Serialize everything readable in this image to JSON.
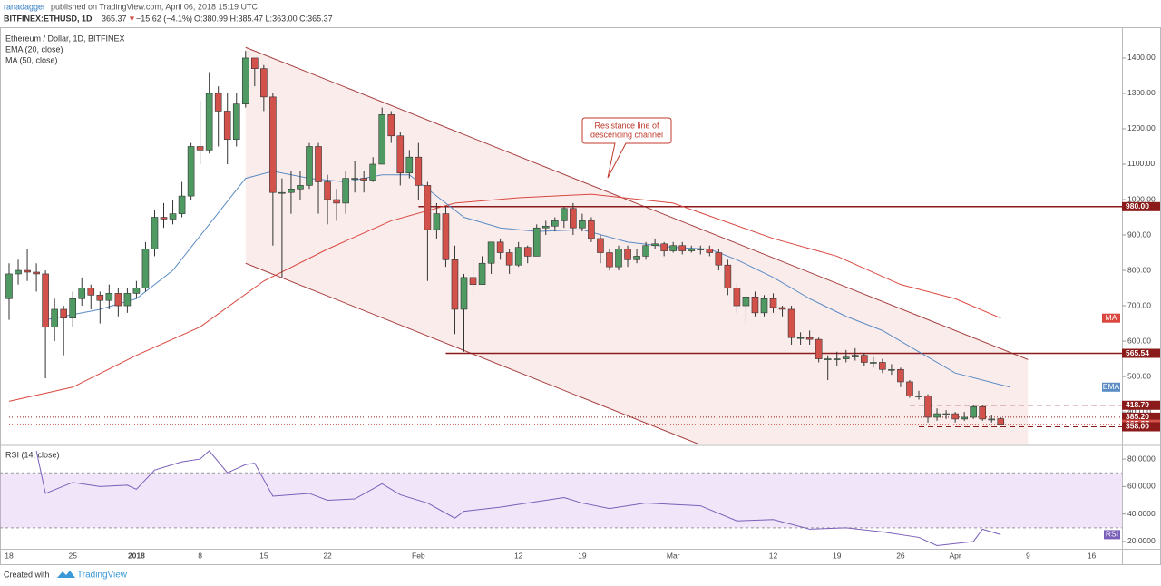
{
  "header": {
    "author": "ranadagger",
    "published": "published on TradingView.com, April 06, 2018 15:19 UTC",
    "symbol": "BITFINEX:ETHUSD, 1D",
    "last": "365.37",
    "arrow": "▼",
    "change": "−15.62 (−4.1%)",
    "ohlc": "O:380.99 H:385.47 L:363.00 C:365.37"
  },
  "chart_data": {
    "type": "candlestick",
    "title": "Ethereum / Dollar, 1D, BITFINEX",
    "categories": [
      "18",
      null,
      null,
      null,
      null,
      null,
      null,
      "25",
      null,
      null,
      null,
      null,
      null,
      null,
      "2018",
      null,
      null,
      null,
      null,
      null,
      null,
      "8",
      null,
      null,
      null,
      null,
      null,
      null,
      "15",
      null,
      null,
      null,
      null,
      null,
      null,
      "22",
      null,
      null,
      null,
      null,
      null,
      null,
      null,
      null,
      null,
      "Feb",
      null,
      null,
      null,
      null,
      null,
      null,
      null,
      null,
      null,
      null,
      "12",
      null,
      null,
      null,
      null,
      null,
      null,
      "19",
      null,
      null,
      null,
      null,
      null,
      null,
      null,
      null,
      null,
      "Mar",
      null,
      null,
      null,
      null,
      null,
      null,
      null,
      null,
      null,
      null,
      "12",
      null,
      null,
      null,
      null,
      null,
      null,
      "19",
      null,
      null,
      null,
      null,
      null,
      null,
      "26",
      null,
      null,
      null,
      null,
      null,
      "Apr",
      null,
      null,
      null,
      null,
      null,
      null,
      null,
      "9",
      null,
      null,
      null,
      null,
      null,
      null,
      "16"
    ],
    "open": [
      720,
      790,
      800,
      795,
      790,
      640,
      690,
      665,
      720,
      750,
      730,
      715,
      735,
      700,
      735,
      750,
      860,
      950,
      945,
      960,
      1010,
      1150,
      1140,
      1300,
      1250,
      1170,
      1270,
      1400,
      1370,
      1290,
      1020,
      1020,
      1030,
      1040,
      1150,
      1050,
      1000,
      990,
      1060,
      1060,
      1055,
      1100,
      1240,
      1180,
      1075,
      1120,
      1040,
      915,
      960,
      830,
      690,
      780,
      760,
      820,
      880,
      850,
      815,
      865,
      840,
      920,
      925,
      940,
      975,
      920,
      940,
      890,
      850,
      810,
      860,
      830,
      840,
      870,
      875,
      855,
      870,
      855,
      860,
      860,
      850,
      815,
      750,
      700,
      725,
      680,
      720,
      695,
      690,
      610,
      610,
      605,
      550,
      550,
      550,
      555,
      560,
      540,
      540,
      520,
      520,
      485,
      445,
      445,
      385,
      395,
      395,
      380,
      385,
      415,
      380,
      380.99,
      null,
      null,
      null,
      null,
      null,
      null,
      null,
      null,
      null,
      null
    ],
    "high": [
      820,
      830,
      860,
      820,
      800,
      720,
      700,
      740,
      780,
      760,
      740,
      760,
      750,
      750,
      770,
      880,
      970,
      990,
      1000,
      1050,
      1160,
      1280,
      1360,
      1320,
      1300,
      1300,
      1420,
      1400,
      1380,
      1300,
      1060,
      1080,
      1080,
      1160,
      1160,
      1070,
      1030,
      1080,
      1110,
      1080,
      1120,
      1260,
      1250,
      1190,
      1140,
      1160,
      1050,
      990,
      980,
      870,
      790,
      830,
      840,
      880,
      890,
      860,
      880,
      870,
      930,
      940,
      950,
      980,
      990,
      960,
      950,
      900,
      860,
      870,
      870,
      860,
      880,
      890,
      880,
      880,
      880,
      870,
      870,
      870,
      860,
      830,
      760,
      730,
      740,
      730,
      735,
      700,
      700,
      625,
      630,
      610,
      560,
      570,
      575,
      580,
      565,
      555,
      550,
      535,
      525,
      490,
      460,
      450,
      410,
      405,
      400,
      400,
      420,
      420,
      390,
      385.47,
      null,
      null,
      null,
      null,
      null,
      null,
      null,
      null,
      null,
      null
    ],
    "low": [
      660,
      760,
      770,
      740,
      495,
      600,
      560,
      640,
      700,
      690,
      650,
      690,
      670,
      680,
      720,
      740,
      840,
      920,
      930,
      950,
      1000,
      1100,
      1130,
      1150,
      1100,
      1150,
      1260,
      1320,
      1250,
      870,
      780,
      960,
      1000,
      1030,
      960,
      930,
      940,
      960,
      1020,
      1020,
      1050,
      1100,
      1160,
      1040,
      1060,
      1000,
      770,
      890,
      810,
      620,
      570,
      730,
      760,
      790,
      830,
      790,
      810,
      820,
      840,
      900,
      910,
      920,
      900,
      910,
      880,
      820,
      800,
      800,
      810,
      820,
      830,
      860,
      840,
      850,
      845,
      850,
      845,
      840,
      800,
      730,
      680,
      650,
      670,
      670,
      680,
      670,
      590,
      590,
      590,
      540,
      490,
      530,
      540,
      545,
      530,
      525,
      510,
      505,
      470,
      440,
      435,
      370,
      375,
      380,
      370,
      375,
      380,
      375,
      370,
      363,
      null,
      null,
      null,
      null,
      null,
      null,
      null,
      null,
      null,
      null
    ],
    "close": [
      790,
      800,
      795,
      790,
      640,
      690,
      665,
      720,
      750,
      730,
      715,
      735,
      700,
      735,
      750,
      860,
      950,
      945,
      960,
      1010,
      1150,
      1140,
      1300,
      1250,
      1170,
      1270,
      1400,
      1370,
      1290,
      1020,
      1020,
      1030,
      1040,
      1150,
      1050,
      1000,
      990,
      1060,
      1060,
      1055,
      1100,
      1240,
      1180,
      1075,
      1120,
      1040,
      915,
      960,
      830,
      690,
      780,
      760,
      820,
      880,
      850,
      815,
      865,
      840,
      920,
      925,
      940,
      975,
      920,
      940,
      890,
      850,
      810,
      860,
      830,
      840,
      870,
      875,
      855,
      870,
      855,
      860,
      860,
      850,
      815,
      750,
      700,
      725,
      680,
      720,
      695,
      690,
      610,
      610,
      605,
      550,
      550,
      550,
      555,
      560,
      540,
      540,
      520,
      520,
      485,
      445,
      445,
      385,
      395,
      395,
      380,
      385,
      415,
      380,
      380,
      365.37,
      null,
      null,
      null,
      null,
      null,
      null,
      null,
      null,
      null,
      null
    ],
    "up_color": "#4f9a62",
    "down_color": "#d2524b",
    "ylim": [
      308,
      1487
    ],
    "yticks": [
      {
        "value": 400,
        "label": "400.00"
      },
      {
        "value": 500,
        "label": "500.00"
      },
      {
        "value": 600,
        "label": "600.00"
      },
      {
        "value": 700,
        "label": "700.00"
      },
      {
        "value": 800,
        "label": "800.00"
      },
      {
        "value": 900,
        "label": "900.00"
      },
      {
        "value": 1000,
        "label": "1000.00"
      },
      {
        "value": 1100,
        "label": "1100.00"
      },
      {
        "value": 1200,
        "label": "1200.00"
      },
      {
        "value": 1300,
        "label": "1300.00"
      },
      {
        "value": 1400,
        "label": "1400.00"
      }
    ],
    "ema": {
      "name": "EMA",
      "legend": "EMA (20, close)",
      "color": "#5b8cc4",
      "x": [
        4,
        10,
        14,
        18,
        22,
        26,
        29,
        33,
        37,
        41,
        44,
        47,
        50,
        54,
        58,
        63,
        68,
        73,
        77,
        80,
        84,
        88,
        92,
        96,
        100,
        104,
        110
      ],
      "values": [
        660,
        690,
        720,
        800,
        930,
        1060,
        1080,
        1060,
        1050,
        1070,
        1070,
        1010,
        950,
        920,
        910,
        915,
        880,
        865,
        860,
        830,
        780,
        720,
        670,
        630,
        570,
        510,
        470
      ]
    },
    "ma": {
      "name": "MA",
      "legend": "MA (50, close)",
      "color": "#d9473f",
      "x": [
        0,
        7,
        14,
        21,
        28,
        35,
        42,
        49,
        56,
        64,
        73,
        84,
        91,
        98,
        104,
        109
      ],
      "values": [
        430,
        470,
        560,
        640,
        770,
        860,
        940,
        990,
        1005,
        1015,
        990,
        890,
        840,
        760,
        720,
        665
      ]
    },
    "levels": [
      {
        "value": 980,
        "label": "980.00",
        "from": 45,
        "style": "solid",
        "color": "#8b1a1a"
      },
      {
        "value": 565.54,
        "label": "565.54",
        "from": 48,
        "style": "solid",
        "color": "#8b1a1a"
      },
      {
        "value": 418.79,
        "label": "418.79",
        "from": 99,
        "style": "dashed",
        "color": "#8b1a1a"
      },
      {
        "value": 385.2,
        "label": "385.20",
        "from": 0,
        "style": "dotted",
        "color": "#8b1a1a"
      },
      {
        "value": 365.37,
        "label": "365.37",
        "from": 0,
        "style": "dotted",
        "color": "#d2524b"
      },
      {
        "value": 358,
        "label": "358.00",
        "from": 100,
        "style": "dashed",
        "color": "#8b1a1a"
      }
    ],
    "channel": {
      "color": "#a84040",
      "upper": {
        "x": [
          26,
          112
        ],
        "y": [
          1430,
          548
        ]
      },
      "lower": {
        "x": [
          26,
          76
        ],
        "y": [
          820,
          307
        ]
      }
    },
    "annotation": [
      "Resistance line of",
      "descending channel"
    ],
    "rsi": {
      "name": "RSI",
      "label": "RSI (14, close)",
      "color": "#7a5fb8",
      "ylim": [
        14.7,
        89.3
      ],
      "yticks": [
        {
          "value": 20,
          "label": "20.0000"
        },
        {
          "value": 40,
          "label": "40.0000"
        },
        {
          "value": 60,
          "label": "60.0000"
        },
        {
          "value": 80,
          "label": "80.0000"
        }
      ],
      "band": [
        30,
        70
      ],
      "x": [
        3,
        4,
        7,
        10,
        13,
        14,
        16,
        19,
        21,
        22,
        24,
        26,
        27,
        29,
        33,
        35,
        38,
        41,
        43,
        46,
        49,
        50,
        54,
        58,
        61,
        63,
        66,
        70,
        73,
        76,
        80,
        84,
        88,
        92,
        96,
        100,
        102,
        106,
        107,
        109
      ],
      "values": [
        86,
        55,
        63,
        60,
        61,
        58,
        72,
        78,
        80,
        86,
        70,
        76,
        77,
        53,
        55,
        50,
        51,
        62,
        54,
        48,
        37,
        42,
        45,
        49,
        52,
        48,
        44,
        48,
        47,
        46,
        35,
        36,
        29,
        30,
        27,
        23,
        17,
        20,
        29,
        25
      ]
    }
  },
  "footer": {
    "created": "Created with",
    "brand": "TradingView"
  }
}
